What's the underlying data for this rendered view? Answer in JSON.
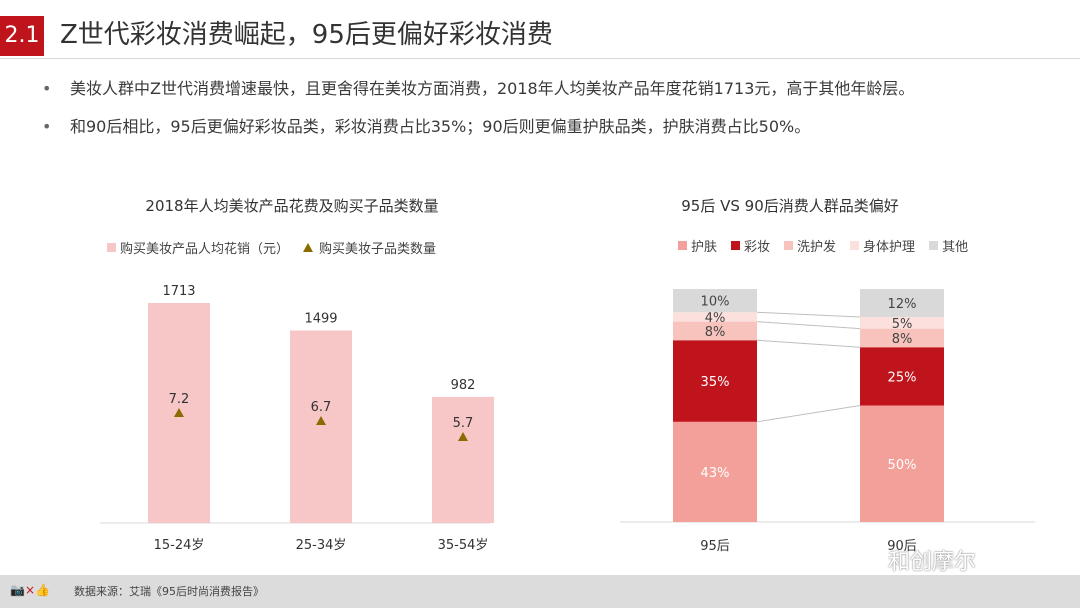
{
  "header": {
    "section_number": "2.1",
    "title": "Z世代彩妆消费崛起，95后更偏好彩妆消费"
  },
  "bullets": [
    "美妆人群中Z世代消费增速最快，且更舍得在美妆方面消费，2018年人均美妆产品年度花销1713元，高于其他年龄层。",
    "和90后相比，95后更偏好彩妆品类，彩妆消费占比35%；90后则更偏重护肤品类，护肤消费占比50%。"
  ],
  "bullet_marker": "•",
  "left_chart": {
    "title": "2018年人均美妆产品花费及购买子品类数量",
    "legend": {
      "bar": "购买美妆产品人均花销（元）",
      "marker": "购买美妆子品类数量"
    }
  },
  "right_chart": {
    "title": "95后 VS 90后消费人群品类偏好",
    "legend": [
      "护肤",
      "彩妆",
      "洗护发",
      "身体护理",
      "其他"
    ]
  },
  "chart_data": [
    {
      "type": "bar",
      "title": "2018年人均美妆产品花费及购买子品类数量",
      "categories": [
        "15-24岁",
        "25-34岁",
        "35-54岁"
      ],
      "series": [
        {
          "name": "购买美妆产品人均花销（元）",
          "values": [
            1713,
            1499,
            982
          ],
          "color": "#f7c6c7"
        },
        {
          "name": "购买美妆子品类数量",
          "values": [
            7.2,
            6.7,
            5.7
          ],
          "marker": "triangle",
          "color": "#8b6a00"
        }
      ],
      "grid": false
    },
    {
      "type": "bar",
      "stacked": true,
      "percent": true,
      "title": "95后 VS 90后消费人群品类偏好",
      "categories": [
        "95后",
        "90后"
      ],
      "series": [
        {
          "name": "护肤",
          "values": [
            43,
            50
          ],
          "color": "#f4a09a"
        },
        {
          "name": "彩妆",
          "values": [
            35,
            25
          ],
          "color": "#c0141d"
        },
        {
          "name": "洗护发",
          "values": [
            8,
            8
          ],
          "color": "#f8c3bd"
        },
        {
          "name": "身体护理",
          "values": [
            4,
            5
          ],
          "color": "#fbe0dd"
        },
        {
          "name": "其他",
          "values": [
            10,
            12
          ],
          "color": "#d9d9d9"
        }
      ],
      "labels": [
        [
          "43%",
          "35%",
          "8%",
          "4%",
          "10%"
        ],
        [
          "50%",
          "25%",
          "8%",
          "5%",
          "12%"
        ]
      ],
      "legend_position": "top",
      "grid": false
    }
  ],
  "footer": {
    "logo": "📷×👍",
    "source": "数据来源：艾瑞《95后时尚消费报告》",
    "watermark": "和创摩尔"
  }
}
